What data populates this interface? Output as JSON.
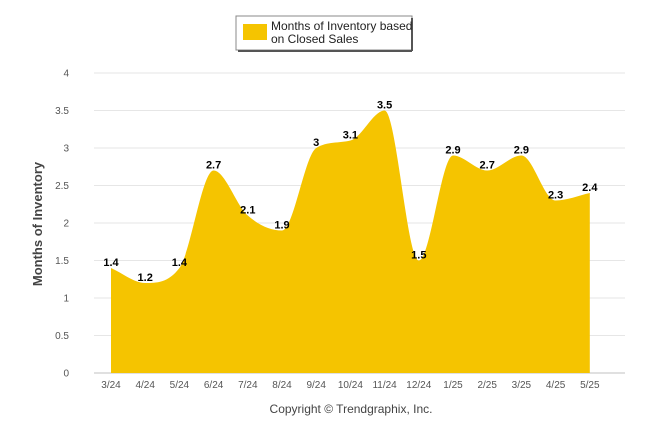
{
  "chart_data": {
    "type": "area",
    "categories": [
      "3/24",
      "4/24",
      "5/24",
      "6/24",
      "7/24",
      "8/24",
      "9/24",
      "10/24",
      "11/24",
      "12/24",
      "1/25",
      "2/25",
      "3/25",
      "4/25",
      "5/25"
    ],
    "series": [
      {
        "name": "Months of Inventory based on Closed Sales",
        "values": [
          1.4,
          1.2,
          1.4,
          2.7,
          2.1,
          1.9,
          3,
          3.1,
          3.5,
          1.5,
          2.9,
          2.7,
          2.9,
          2.3,
          2.4
        ],
        "color": "#F5C400"
      }
    ],
    "data_labels": [
      "1.4",
      "1.2",
      "1.4",
      "2.7",
      "2.1",
      "1.9",
      "3",
      "3.1",
      "3.5",
      "1.5",
      "2.9",
      "2.7",
      "2.9",
      "2.3",
      "2.4"
    ],
    "ylabel": "Months of Inventory",
    "xlabel": "",
    "ylim": [
      0,
      4
    ],
    "yticks": [
      "0",
      "0.5",
      "1",
      "1.5",
      "2",
      "2.5",
      "3",
      "3.5",
      "4"
    ],
    "grid": true,
    "legend_position": "top-center",
    "smooth": true
  },
  "legend": {
    "line1": "Months of Inventory based",
    "line2": "on Closed Sales"
  },
  "footer": {
    "copyright": "Copyright © Trendgraphix, Inc."
  }
}
